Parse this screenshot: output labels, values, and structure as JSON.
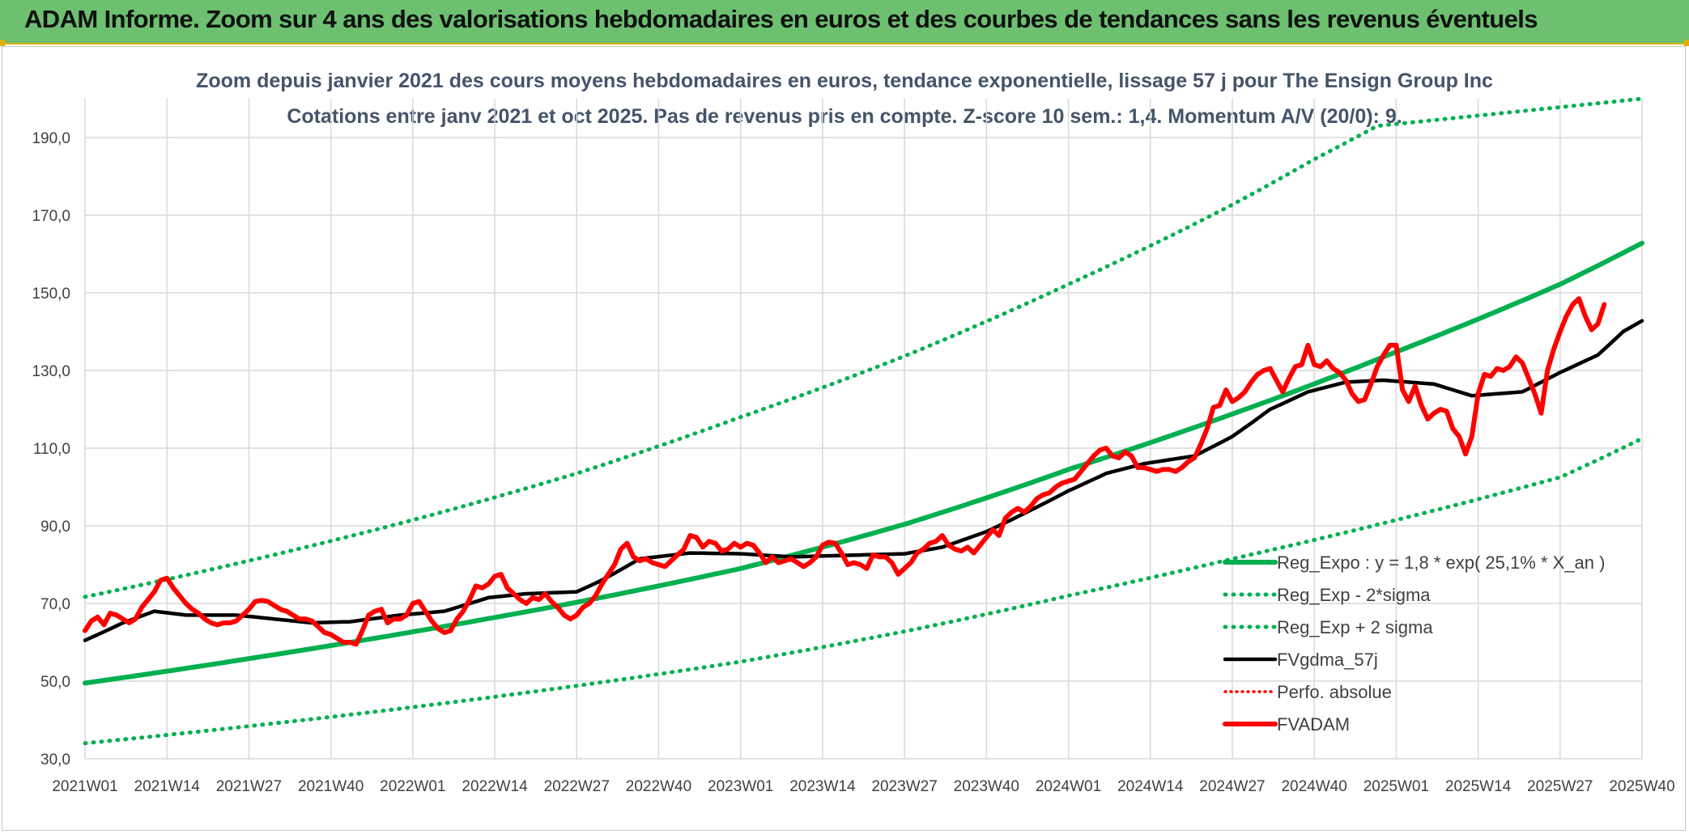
{
  "header": {
    "banner_title": "ADAM Informe. Zoom sur 4 ans des valorisations hebdomadaires en euros et des courbes de tendances sans les revenus éventuels"
  },
  "chart_data": {
    "type": "line",
    "title": "Zoom depuis janvier 2021 des cours moyens hebdomadaires en euros, tendance exponentielle, lissage 57 j pour The Ensign Group Inc",
    "subtitle": "Cotations entre janv 2021 et oct 2025. Pas de revenus pris en compte. Z-score 10 sem.: 1,4. Momentum A/V (20/0): 9.",
    "xlabel": "",
    "ylabel": "",
    "ylim": [
      30,
      200
    ],
    "y_ticks": [
      "30,0",
      "50,0",
      "70,0",
      "90,0",
      "110,0",
      "130,0",
      "150,0",
      "170,0",
      "190,0"
    ],
    "y_tick_values": [
      30,
      50,
      70,
      90,
      110,
      130,
      150,
      170,
      190
    ],
    "x_tick_labels": [
      "2021W01",
      "2021W14",
      "2021W27",
      "2021W40",
      "2022W01",
      "2022W14",
      "2022W27",
      "2022W40",
      "2023W01",
      "2023W14",
      "2023W27",
      "2023W40",
      "2024W01",
      "2024W14",
      "2024W27",
      "2024W40",
      "2025W01",
      "2025W14",
      "2025W27",
      "2025W40"
    ],
    "x_tick_index": [
      0,
      13,
      26,
      39,
      52,
      65,
      78,
      91,
      104,
      117,
      130,
      143,
      156,
      169,
      182,
      195,
      208,
      221,
      234,
      247
    ],
    "grid": true,
    "legend_position": "bottom-right",
    "colors": {
      "green": "#00b050",
      "black": "#000000",
      "red": "#ff0000",
      "grid": "#d9d9d9",
      "text": "#404040"
    },
    "series": [
      {
        "name": "Reg_Expo : y = 1,8 * exp( 25,1% *  X_an )",
        "style": "solid-green",
        "key_points": [
          [
            0,
            49.5
          ],
          [
            26,
            55.8
          ],
          [
            52,
            62.7
          ],
          [
            78,
            70.3
          ],
          [
            104,
            79.0
          ],
          [
            130,
            90.4
          ],
          [
            156,
            104.5
          ],
          [
            182,
            118.8
          ],
          [
            208,
            134.8
          ],
          [
            234,
            152.2
          ],
          [
            247,
            162.8
          ]
        ]
      },
      {
        "name": "Reg_Exp - 2*sigma",
        "style": "dotted-green",
        "key_points": [
          [
            0,
            34.0
          ],
          [
            26,
            38.4
          ],
          [
            52,
            43.3
          ],
          [
            78,
            48.8
          ],
          [
            104,
            55.0
          ],
          [
            130,
            62.8
          ],
          [
            156,
            72.0
          ],
          [
            182,
            81.5
          ],
          [
            208,
            91.5
          ],
          [
            234,
            102.5
          ],
          [
            247,
            112.5
          ]
        ]
      },
      {
        "name": "Reg_Exp + 2 sigma",
        "style": "dotted-green",
        "key_points": [
          [
            0,
            71.7
          ],
          [
            26,
            81.0
          ],
          [
            52,
            91.5
          ],
          [
            78,
            103.5
          ],
          [
            104,
            118.0
          ],
          [
            130,
            133.7
          ],
          [
            156,
            152.2
          ],
          [
            182,
            172.7
          ],
          [
            195,
            184.4
          ],
          [
            205,
            193.0
          ],
          [
            247,
            200.0
          ]
        ]
      },
      {
        "name": "FVgdma_57j",
        "style": "solid-black",
        "key_points": [
          [
            0,
            60.5
          ],
          [
            6,
            65.0
          ],
          [
            11,
            68.0
          ],
          [
            16,
            67.0
          ],
          [
            24,
            67.0
          ],
          [
            30,
            66.0
          ],
          [
            36,
            65.0
          ],
          [
            42,
            65.3
          ],
          [
            50,
            67.0
          ],
          [
            57,
            68.0
          ],
          [
            64,
            71.5
          ],
          [
            70,
            72.5
          ],
          [
            78,
            73.0
          ],
          [
            82,
            76.0
          ],
          [
            88,
            81.5
          ],
          [
            96,
            83.0
          ],
          [
            104,
            82.8
          ],
          [
            112,
            82.0
          ],
          [
            130,
            82.8
          ],
          [
            136,
            84.5
          ],
          [
            143,
            88.5
          ],
          [
            150,
            94.0
          ],
          [
            156,
            99.0
          ],
          [
            162,
            103.5
          ],
          [
            168,
            106.0
          ],
          [
            176,
            108.0
          ],
          [
            182,
            113.0
          ],
          [
            188,
            120.0
          ],
          [
            194,
            124.5
          ],
          [
            200,
            127.0
          ],
          [
            206,
            127.5
          ],
          [
            214,
            126.5
          ],
          [
            220,
            123.5
          ],
          [
            228,
            124.5
          ],
          [
            234,
            129.5
          ],
          [
            240,
            134.0
          ],
          [
            244,
            140.0
          ],
          [
            247,
            142.8
          ]
        ]
      },
      {
        "name": "Perfo. absolue",
        "style": "dotted-red",
        "key_points": []
      },
      {
        "name": "FVADAM",
        "style": "solid-red",
        "values": [
          63.0,
          65.5,
          66.5,
          64.5,
          67.5,
          67.0,
          66.0,
          65.0,
          66.0,
          69.0,
          71.0,
          73.0,
          76.0,
          76.5,
          74.0,
          72.0,
          70.0,
          68.5,
          67.5,
          66.0,
          65.0,
          64.5,
          65.0,
          65.0,
          65.5,
          67.0,
          68.5,
          70.5,
          70.8,
          70.5,
          69.5,
          68.5,
          68.0,
          67.0,
          66.0,
          66.0,
          65.5,
          64.0,
          62.5,
          62.0,
          61.0,
          60.0,
          60.0,
          59.5,
          63.0,
          67.0,
          68.0,
          68.5,
          65.0,
          66.0,
          66.0,
          67.0,
          70.0,
          70.5,
          68.0,
          65.5,
          63.5,
          62.5,
          63.0,
          66.0,
          68.0,
          71.0,
          74.5,
          74.0,
          75.0,
          77.0,
          77.5,
          74.0,
          72.5,
          71.0,
          70.0,
          71.5,
          71.0,
          72.5,
          70.5,
          69.0,
          67.0,
          66.0,
          67.0,
          69.0,
          70.0,
          72.0,
          75.0,
          77.5,
          80.0,
          84.0,
          85.5,
          82.0,
          81.0,
          81.5,
          80.5,
          80.0,
          79.5,
          81.0,
          82.5,
          84.0,
          87.5,
          87.0,
          84.5,
          86.0,
          85.5,
          83.5,
          84.0,
          85.5,
          84.5,
          85.5,
          85.0,
          83.0,
          80.5,
          82.0,
          80.5,
          81.0,
          81.5,
          80.5,
          79.5,
          80.5,
          82.0,
          85.0,
          85.8,
          85.5,
          83.0,
          80.0,
          80.5,
          80.0,
          79.0,
          82.5,
          82.0,
          82.0,
          80.5,
          77.5,
          79.0,
          80.5,
          83.0,
          84.0,
          85.5,
          86.0,
          87.5,
          85.0,
          84.0,
          83.5,
          84.5,
          83.0,
          85.0,
          87.0,
          89.0,
          87.5,
          92.0,
          93.5,
          94.5,
          93.5,
          95.0,
          97.0,
          98.0,
          98.5,
          100.0,
          101.0,
          101.5,
          102.0,
          104.0,
          106.0,
          108.0,
          109.5,
          110.0,
          108.0,
          107.5,
          109.0,
          108.0,
          105.0,
          105.0,
          104.5,
          104.0,
          104.5,
          104.5,
          104.0,
          105.0,
          106.5,
          107.5,
          111.0,
          115.0,
          120.5,
          121.0,
          125.0,
          122.0,
          123.0,
          124.5,
          127.0,
          129.0,
          130.0,
          130.5,
          127.5,
          124.5,
          128.0,
          131.0,
          131.5,
          136.5,
          131.5,
          131.0,
          132.5,
          130.5,
          129.5,
          127.5,
          124.0,
          122.0,
          122.5,
          126.5,
          131.0,
          134.0,
          136.5,
          136.5,
          125.0,
          122.0,
          126.0,
          121.0,
          117.5,
          119.0,
          120.0,
          119.5,
          115.0,
          113.0,
          108.5,
          113.0,
          124.0,
          129.0,
          128.5,
          130.5,
          130.0,
          131.0,
          133.5,
          132.0,
          128.0,
          124.0,
          119.0,
          130.0,
          135.5,
          140.0,
          144.0,
          147.0,
          148.5,
          144.0,
          140.5,
          142.0,
          147.0
        ]
      }
    ]
  }
}
